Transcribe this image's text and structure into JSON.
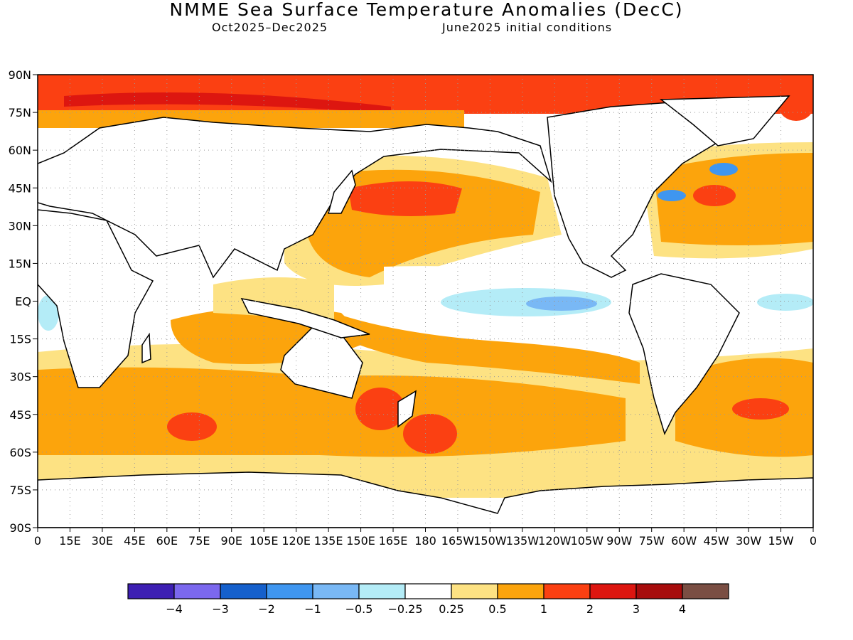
{
  "title": "NMME Sea Surface Temperature Anomalies (DecC)",
  "subtitle_left": "Oct2025–Dec2025",
  "subtitle_right": "June2025 initial conditions",
  "lat_labels": [
    "90N",
    "75N",
    "60N",
    "45N",
    "30N",
    "15N",
    "EQ",
    "15S",
    "30S",
    "45S",
    "60S",
    "75S",
    "90S"
  ],
  "lon_labels": [
    "0",
    "15E",
    "30E",
    "45E",
    "60E",
    "75E",
    "90E",
    "105E",
    "120E",
    "135E",
    "150E",
    "165E",
    "180",
    "165W",
    "150W",
    "135W",
    "120W",
    "105W",
    "90W",
    "75W",
    "60W",
    "45W",
    "30W",
    "15W",
    "0"
  ],
  "legend": {
    "colors": [
      "#3d1fb3",
      "#7b68ee",
      "#1560cc",
      "#3f96f0",
      "#79b8f5",
      "#b4ecf7",
      "#ffffff",
      "#fde283",
      "#fca40c",
      "#fb4012",
      "#dd1610",
      "#a70c0c",
      "#7a4e43"
    ],
    "labels": [
      "-4",
      "-3",
      "-2",
      "-1",
      "-0.5",
      "-0.25",
      "0.25",
      "0.5",
      "1",
      "2",
      "3",
      "4"
    ]
  }
}
